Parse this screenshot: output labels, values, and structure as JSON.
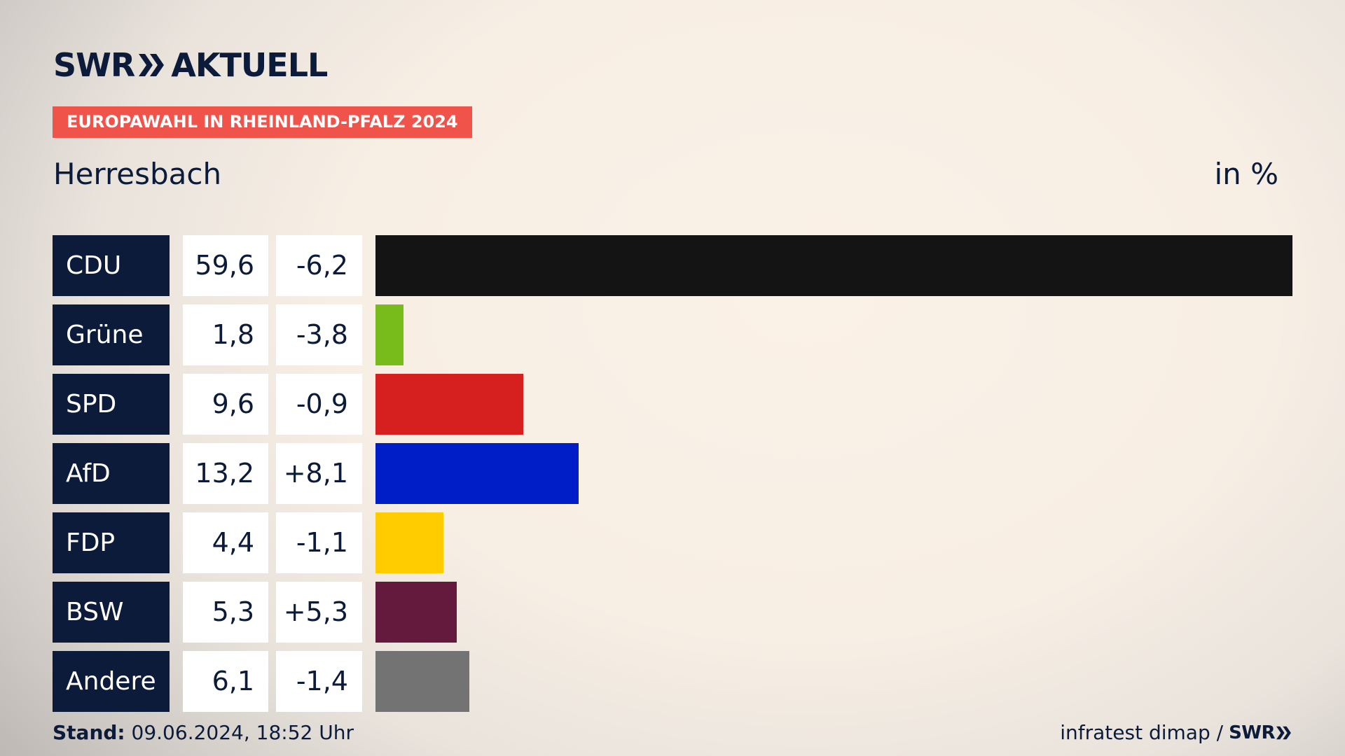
{
  "header": {
    "logo_left": "SWR",
    "logo_right": "AKTUELL",
    "banner": "EUROPAWAHL IN RHEINLAND-PFALZ 2024",
    "location": "Herresbach",
    "unit": "in %"
  },
  "footer": {
    "stand_label": "Stand:",
    "stand_value": "09.06.2024, 18:52 Uhr",
    "source": "infratest dimap /",
    "source_logo": "SWR"
  },
  "chart_data": {
    "type": "bar",
    "orientation": "horizontal",
    "categories": [
      "CDU",
      "Grüne",
      "SPD",
      "AfD",
      "FDP",
      "BSW",
      "Andere"
    ],
    "values": [
      59.6,
      1.8,
      9.6,
      13.2,
      4.4,
      5.3,
      6.1
    ],
    "value_labels": [
      "59,6",
      "1,8",
      "9,6",
      "13,2",
      "4,4",
      "5,3",
      "6,1"
    ],
    "change_labels": [
      "-6,2",
      "-3,8",
      "-0,9",
      "+8,1",
      "-1,1",
      "+5,3",
      "-1,4"
    ],
    "changes": [
      -6.2,
      -3.8,
      -0.9,
      8.1,
      -1.1,
      5.3,
      -1.4
    ],
    "colors": [
      "#141414",
      "#78bc1b",
      "#d61f1f",
      "#001ec8",
      "#ffcc00",
      "#641a3c",
      "#737373"
    ],
    "xlim": [
      0,
      59.6
    ],
    "grid": false
  }
}
